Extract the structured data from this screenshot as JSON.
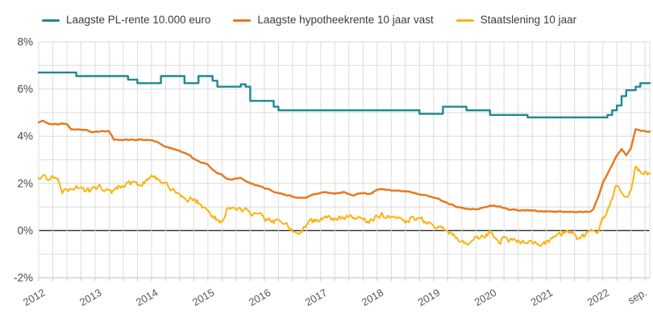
{
  "chart_data": {
    "type": "line",
    "title": "",
    "legend_position": "top",
    "x_range": [
      "2012",
      "sep. 2022"
    ],
    "months_total": 130,
    "ylim": [
      -2,
      8
    ],
    "grid": {
      "h_step_pct": 1,
      "v_step_months": 3,
      "tick_length": 4,
      "grid_color": "#dcdcdc",
      "zero_line_color": "#2b2b2b",
      "axis_color": "#c2c2c2",
      "y_label_color": "#474747",
      "x_label_color": "#585858"
    },
    "noise_seed": 20220901,
    "yticks": [
      {
        "value": 8,
        "label": "8%"
      },
      {
        "value": 6,
        "label": "6%"
      },
      {
        "value": 4,
        "label": "4%"
      },
      {
        "value": 2,
        "label": "2%"
      },
      {
        "value": 0,
        "label": "0%"
      },
      {
        "value": -2,
        "label": "-2%"
      }
    ],
    "xticks": [
      {
        "month": 0,
        "label": "2012"
      },
      {
        "month": 12,
        "label": "2013"
      },
      {
        "month": 24,
        "label": "2014"
      },
      {
        "month": 36,
        "label": "2015"
      },
      {
        "month": 48,
        "label": "2016"
      },
      {
        "month": 60,
        "label": "2017"
      },
      {
        "month": 72,
        "label": "2018"
      },
      {
        "month": 84,
        "label": "2019"
      },
      {
        "month": 96,
        "label": "2020"
      },
      {
        "month": 108,
        "label": "2021"
      },
      {
        "month": 120,
        "label": "2022"
      },
      {
        "month": 128,
        "label": "sep."
      }
    ],
    "series": [
      {
        "name": "Laagste PL-rente 10.000 euro",
        "color": "#1d8a8f",
        "width": 2.4,
        "step": true,
        "jitter": 0,
        "upsample": 1,
        "unit": "%",
        "values": [
          6.7,
          6.7,
          6.7,
          6.7,
          6.7,
          6.7,
          6.7,
          6.7,
          6.55,
          6.55,
          6.55,
          6.55,
          6.55,
          6.55,
          6.55,
          6.55,
          6.55,
          6.55,
          6.55,
          6.4,
          6.4,
          6.25,
          6.25,
          6.25,
          6.25,
          6.25,
          6.55,
          6.55,
          6.55,
          6.55,
          6.55,
          6.25,
          6.25,
          6.25,
          6.55,
          6.55,
          6.55,
          6.35,
          6.1,
          6.1,
          6.1,
          6.1,
          6.1,
          6.2,
          6.1,
          5.5,
          5.5,
          5.5,
          5.5,
          5.5,
          5.25,
          5.1,
          5.1,
          5.1,
          5.1,
          5.1,
          5.1,
          5.1,
          5.1,
          5.1,
          5.1,
          5.1,
          5.1,
          5.1,
          5.1,
          5.1,
          5.1,
          5.1,
          5.1,
          5.1,
          5.1,
          5.1,
          5.1,
          5.1,
          5.1,
          5.1,
          5.1,
          5.1,
          5.1,
          5.1,
          5.1,
          4.95,
          4.95,
          4.95,
          4.95,
          4.95,
          5.25,
          5.25,
          5.25,
          5.25,
          5.25,
          5.1,
          5.1,
          5.1,
          5.1,
          5.1,
          4.9,
          4.9,
          4.9,
          4.9,
          4.9,
          4.9,
          4.9,
          4.9,
          4.8,
          4.8,
          4.8,
          4.8,
          4.8,
          4.8,
          4.8,
          4.8,
          4.8,
          4.8,
          4.8,
          4.8,
          4.8,
          4.8,
          4.8,
          4.8,
          4.8,
          4.9,
          5.1,
          5.3,
          5.7,
          5.95,
          5.95,
          6.1,
          6.25,
          6.25,
          6.25
        ]
      },
      {
        "name": "Laagste hypotheekrente 10 jaar vast",
        "color": "#e8761a",
        "width": 2.4,
        "step": false,
        "jitter": 0.02,
        "upsample": 4,
        "unit": "%",
        "values": [
          4.6,
          4.65,
          4.55,
          4.5,
          4.5,
          4.55,
          4.5,
          4.3,
          4.3,
          4.3,
          4.25,
          4.2,
          4.2,
          4.2,
          4.2,
          4.2,
          3.85,
          3.85,
          3.85,
          3.85,
          3.85,
          3.85,
          3.85,
          3.85,
          3.85,
          3.75,
          3.65,
          3.55,
          3.5,
          3.45,
          3.4,
          3.3,
          3.2,
          3.05,
          2.95,
          2.85,
          2.8,
          2.6,
          2.45,
          2.35,
          2.2,
          2.15,
          2.2,
          2.2,
          2.1,
          2.0,
          1.95,
          1.9,
          1.8,
          1.75,
          1.65,
          1.6,
          1.55,
          1.5,
          1.45,
          1.4,
          1.37,
          1.4,
          1.5,
          1.55,
          1.6,
          1.65,
          1.6,
          1.55,
          1.6,
          1.65,
          1.55,
          1.5,
          1.55,
          1.6,
          1.55,
          1.6,
          1.75,
          1.75,
          1.72,
          1.7,
          1.7,
          1.68,
          1.65,
          1.63,
          1.6,
          1.55,
          1.5,
          1.45,
          1.4,
          1.35,
          1.25,
          1.15,
          1.1,
          1.0,
          0.95,
          0.9,
          0.88,
          0.9,
          0.95,
          1.0,
          1.05,
          1.05,
          1.0,
          0.95,
          0.9,
          0.88,
          0.85,
          0.85,
          0.85,
          0.85,
          0.83,
          0.8,
          0.8,
          0.8,
          0.8,
          0.8,
          0.8,
          0.8,
          0.8,
          0.8,
          0.8,
          0.8,
          0.9,
          1.4,
          2.0,
          2.4,
          2.8,
          3.2,
          3.45,
          3.2,
          3.5,
          4.3,
          4.25,
          4.2,
          4.2
        ]
      },
      {
        "name": "Staatslening 10 jaar",
        "color": "#f9b412",
        "width": 2,
        "step": false,
        "jitter": 0.1,
        "upsample": 4,
        "unit": "%",
        "values": [
          2.25,
          2.3,
          2.2,
          2.35,
          2.1,
          1.55,
          1.7,
          1.8,
          1.85,
          1.75,
          1.7,
          1.65,
          1.8,
          1.85,
          1.75,
          1.7,
          1.6,
          1.8,
          1.9,
          1.95,
          2.0,
          1.9,
          1.95,
          2.1,
          2.35,
          2.2,
          2.1,
          1.95,
          1.8,
          1.7,
          1.6,
          1.45,
          1.35,
          1.3,
          1.2,
          1.0,
          0.8,
          0.6,
          0.45,
          0.3,
          0.9,
          1.05,
          0.95,
          0.85,
          0.9,
          0.75,
          0.7,
          0.75,
          0.55,
          0.45,
          0.4,
          0.45,
          0.4,
          0.2,
          0.0,
          -0.05,
          0.05,
          0.3,
          0.4,
          0.4,
          0.45,
          0.5,
          0.55,
          0.5,
          0.55,
          0.5,
          0.6,
          0.55,
          0.5,
          0.45,
          0.4,
          0.45,
          0.6,
          0.65,
          0.55,
          0.55,
          0.5,
          0.45,
          0.4,
          0.45,
          0.5,
          0.5,
          0.45,
          0.35,
          0.2,
          0.15,
          0.1,
          0.0,
          -0.15,
          -0.3,
          -0.45,
          -0.5,
          -0.45,
          -0.3,
          -0.25,
          -0.2,
          -0.1,
          -0.25,
          -0.55,
          -0.25,
          -0.35,
          -0.4,
          -0.45,
          -0.5,
          -0.45,
          -0.5,
          -0.55,
          -0.55,
          -0.5,
          -0.35,
          -0.2,
          -0.1,
          -0.05,
          -0.1,
          -0.25,
          -0.4,
          -0.25,
          -0.1,
          -0.05,
          -0.2,
          0.5,
          0.9,
          1.4,
          1.95,
          1.6,
          1.3,
          1.8,
          2.8,
          2.45,
          2.5,
          2.4
        ]
      }
    ]
  }
}
